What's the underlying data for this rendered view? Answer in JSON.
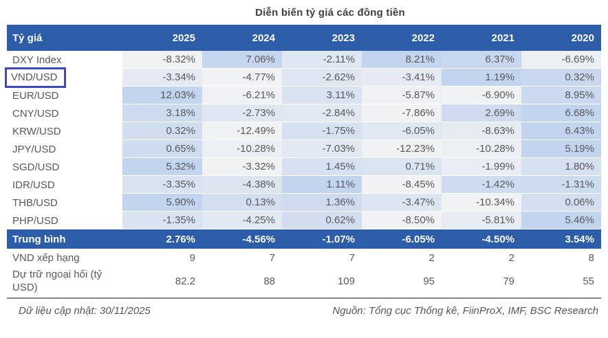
{
  "title": "Diễn biến tỷ giá các đồng tiền",
  "colors": {
    "header_bg": "#2d5ca8",
    "heat_low": "#f1f2f4",
    "heat_high": "#c2d4ee",
    "highlight_border": "#3c49bd",
    "body_text": "#55585c",
    "divider": "#85898d"
  },
  "chart_data": {
    "type": "table",
    "title": "Diễn biến tỷ giá các đồng tiền",
    "label_header": "Tỷ giá",
    "years": [
      "2025",
      "2024",
      "2023",
      "2022",
      "2021",
      "2020"
    ],
    "unit": "%",
    "heatmap": "per-row two-color scale, row min = grey-white, row max = blue",
    "currency_rows": [
      {
        "label": "DXY Index",
        "highlighted": false,
        "values": [
          -8.32,
          7.06,
          -2.11,
          8.21,
          6.37,
          -6.69
        ]
      },
      {
        "label": "VND/USD",
        "highlighted": true,
        "values": [
          -3.34,
          -4.77,
          -2.62,
          -3.41,
          1.19,
          0.32
        ]
      },
      {
        "label": "EUR/USD",
        "highlighted": false,
        "values": [
          12.03,
          -6.21,
          3.11,
          -5.87,
          -6.9,
          8.95
        ]
      },
      {
        "label": "CNY/USD",
        "highlighted": false,
        "values": [
          3.18,
          -2.73,
          -2.84,
          -7.86,
          2.69,
          6.68
        ]
      },
      {
        "label": "KRW/USD",
        "highlighted": false,
        "values": [
          0.32,
          -12.49,
          -1.75,
          -6.05,
          -8.63,
          6.43
        ]
      },
      {
        "label": "JPY/USD",
        "highlighted": false,
        "values": [
          0.65,
          -10.28,
          -7.03,
          -12.23,
          -10.28,
          5.19
        ]
      },
      {
        "label": "SGD/USD",
        "highlighted": false,
        "values": [
          5.32,
          -3.32,
          1.45,
          0.71,
          -1.99,
          1.8
        ]
      },
      {
        "label": "IDR/USD",
        "highlighted": false,
        "values": [
          -3.35,
          -4.38,
          1.11,
          -8.45,
          -1.42,
          -1.31
        ]
      },
      {
        "label": "THB/USD",
        "highlighted": false,
        "values": [
          5.9,
          0.13,
          1.36,
          -3.47,
          -10.34,
          0.06
        ]
      },
      {
        "label": "PHP/USD",
        "highlighted": false,
        "values": [
          -1.35,
          -4.25,
          0.62,
          -8.5,
          -5.81,
          5.46
        ]
      }
    ],
    "summary_row": {
      "label": "Trung bình",
      "values": [
        2.76,
        -4.56,
        -1.07,
        -6.05,
        -4.5,
        3.54
      ]
    },
    "extra_rows": [
      {
        "name": "rank",
        "label": "VND xếp hạng",
        "values": [
          "9",
          "7",
          "7",
          "2",
          "2",
          "8"
        ]
      },
      {
        "name": "reserves",
        "label": "Dự trữ ngoại hối (tỷ USD)",
        "values": [
          "82.2",
          "88",
          "109",
          "95",
          "79",
          "55"
        ]
      }
    ]
  },
  "footer": {
    "updated": "Dữ liệu cập nhật: 30/11/2025",
    "source": "Nguồn: Tổng cục Thống kê, FiinProX, IMF, BSC Research"
  }
}
